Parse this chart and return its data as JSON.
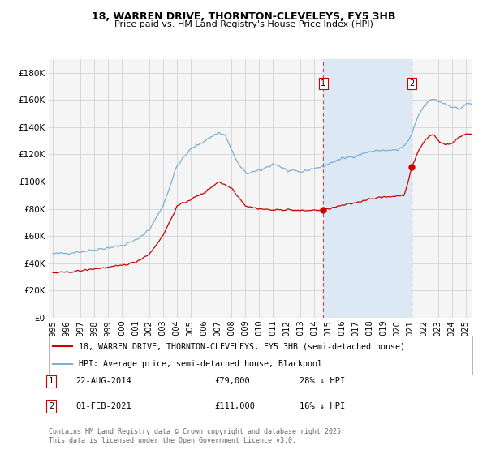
{
  "title1": "18, WARREN DRIVE, THORNTON-CLEVELEYS, FY5 3HB",
  "title2": "Price paid vs. HM Land Registry's House Price Index (HPI)",
  "legend_label_red": "18, WARREN DRIVE, THORNTON-CLEVELEYS, FY5 3HB (semi-detached house)",
  "legend_label_blue": "HPI: Average price, semi-detached house, Blackpool",
  "footer": "Contains HM Land Registry data © Crown copyright and database right 2025.\nThis data is licensed under the Open Government Licence v3.0.",
  "marker1_date": 2014.646,
  "marker1_value": 79000,
  "marker1_label": "1",
  "marker1_text": "22-AUG-2014",
  "marker1_price": "£79,000",
  "marker1_hpi": "28% ↓ HPI",
  "marker2_date": 2021.083,
  "marker2_value": 111000,
  "marker2_label": "2",
  "marker2_text": "01-FEB-2021",
  "marker2_price": "£111,000",
  "marker2_hpi": "16% ↓ HPI",
  "red_color": "#cc0000",
  "blue_color": "#7bafd4",
  "shade_color": "#dce9f5",
  "background_color": "#ffffff",
  "grid_color": "#cccccc",
  "ylim": [
    0,
    190000
  ],
  "xlim_start": 1994.7,
  "xlim_end": 2025.5,
  "hpi_key_x": [
    1995,
    1995.5,
    1996,
    1997,
    1998,
    1999,
    2000,
    2001,
    2002,
    2003,
    2004,
    2005,
    2006,
    2007,
    2007.5,
    2008,
    2008.5,
    2009,
    2010,
    2011,
    2011.5,
    2012,
    2013,
    2014,
    2014.5,
    2015,
    2016,
    2017,
    2018,
    2019,
    2020,
    2020.5,
    2021,
    2021.5,
    2022,
    2022.3,
    2022.6,
    2023,
    2023.5,
    2024,
    2024.5,
    2025
  ],
  "hpi_key_y": [
    47000,
    47200,
    47500,
    48500,
    50000,
    51500,
    53000,
    57000,
    65000,
    83000,
    112000,
    124000,
    130000,
    136000,
    134000,
    122000,
    112000,
    106000,
    108000,
    113000,
    111000,
    108000,
    107000,
    110000,
    110500,
    113000,
    117000,
    119000,
    122000,
    123000,
    123000,
    126000,
    133000,
    148000,
    156000,
    159000,
    161000,
    159000,
    157000,
    155000,
    153000,
    157000
  ],
  "red_key_x": [
    1995,
    1995.5,
    1996,
    1997,
    1998,
    1999,
    2000,
    2001,
    2002,
    2003,
    2004,
    2005,
    2006,
    2007,
    2008,
    2008.5,
    2009,
    2010,
    2011,
    2012,
    2013,
    2014,
    2014.646,
    2015,
    2016,
    2017,
    2018,
    2019,
    2019.5,
    2020,
    2020.5,
    2021.083,
    2021.5,
    2022,
    2022.3,
    2022.6,
    2023,
    2023.5,
    2024,
    2024.5,
    2025
  ],
  "red_key_y": [
    33000,
    33200,
    33500,
    34500,
    36000,
    37000,
    38500,
    41000,
    47000,
    61000,
    82000,
    87000,
    92000,
    100000,
    95000,
    88000,
    82000,
    80000,
    79000,
    79500,
    78500,
    79000,
    79000,
    80000,
    82500,
    84500,
    87500,
    88500,
    89000,
    89500,
    90000,
    111000,
    122000,
    130000,
    133000,
    135000,
    130000,
    127000,
    128000,
    133000,
    135000
  ]
}
